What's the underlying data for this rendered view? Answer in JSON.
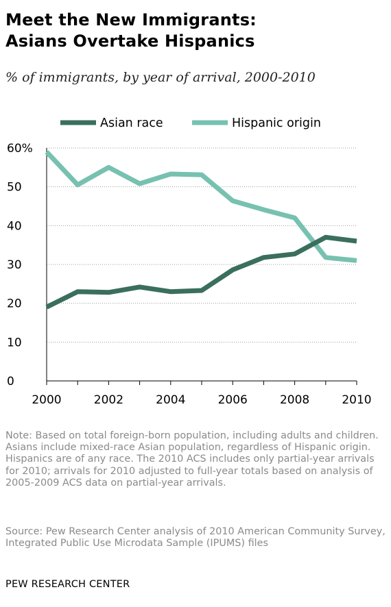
{
  "title_line1": "Meet the New Immigrants:",
  "title_line2": "Asians Overtake Hispanics",
  "subtitle": "% of immigrants, by year of arrival, 2000-2010",
  "note": "Note: Based on total foreign-born population, including adults and children. Asians include mixed-race Asian population, regardless of Hispanic origin. Hispanics are of any race. The 2010 ACS includes only partial-year arrivals for 2010; arrivals for 2010 adjusted to full-year totals based on analysis of 2005-2009 ACS data on partial-year arrivals.",
  "source": "Source: Pew Research Center analysis of 2010 American Community Survey, Integrated Public Use Microdata Sample (IPUMS) files",
  "org": "PEW RESEARCH CENTER",
  "chart_data": {
    "type": "line",
    "x": [
      2000,
      2001,
      2002,
      2003,
      2004,
      2005,
      2006,
      2007,
      2008,
      2009,
      2010
    ],
    "series": [
      {
        "name": "Asian race",
        "color": "#3a6f5c",
        "values": [
          19,
          23,
          22.8,
          24.2,
          23,
          23.3,
          28.6,
          31.8,
          32.7,
          37,
          36
        ]
      },
      {
        "name": "Hispanic origin",
        "color": "#77c1b0",
        "values": [
          59,
          50.5,
          55,
          50.8,
          53.3,
          53.1,
          46.4,
          44.1,
          42,
          31.8,
          31
        ]
      }
    ],
    "ylim": [
      0,
      60
    ],
    "yticks": [
      0,
      10,
      20,
      30,
      40,
      50,
      60
    ],
    "ytick_labels": [
      "0",
      "10",
      "20",
      "30",
      "40",
      "50",
      "60%"
    ],
    "xticks": [
      2000,
      2002,
      2004,
      2006,
      2008,
      2010
    ],
    "xtick_labels": [
      "2000",
      "2002",
      "2004",
      "2006",
      "2008",
      "2010"
    ],
    "grid": true,
    "legend_position": "top"
  }
}
